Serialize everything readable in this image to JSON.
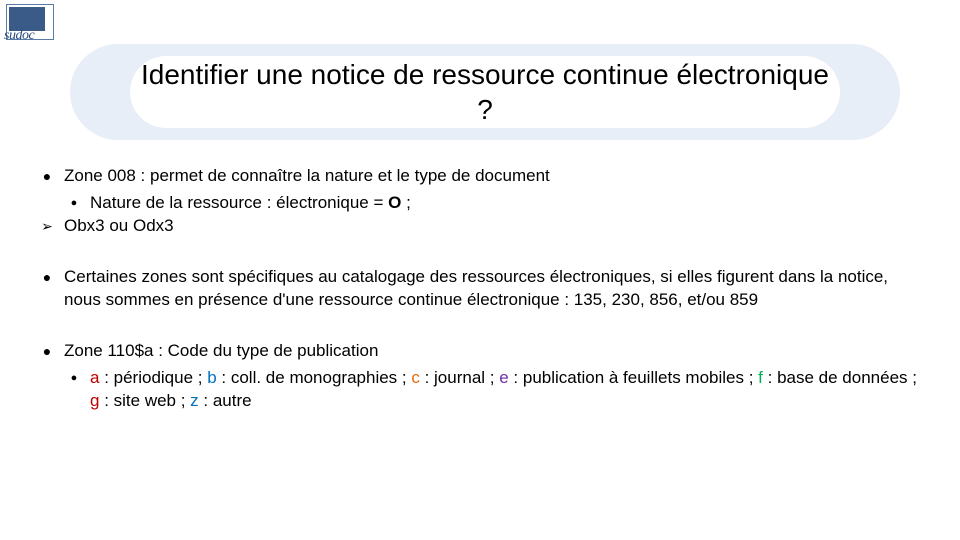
{
  "logo": {
    "text": "sudoc"
  },
  "title": "Identifier une notice de ressource continue électronique ?",
  "items": [
    {
      "bullet": "●",
      "text": "Zone 008 : permet de connaître la nature et le type de document",
      "sub": [
        {
          "bullet": "●",
          "type": "dot",
          "prefix": "Nature de la ressource : électronique = ",
          "bold": "O",
          "suffix": " ;"
        },
        {
          "bullet": "➢",
          "type": "arrow",
          "text": "Obx3 ou Odx3"
        }
      ]
    },
    {
      "bullet": "●",
      "text": "Certaines zones sont spécifiques au catalogage des ressources électroniques, si elles figurent dans la notice, nous sommes en présence d'une ressource continue électronique : 135, 230, 856, et/ou 859"
    },
    {
      "bullet": "●",
      "text": "Zone 110$a : Code du type de publication",
      "sub": [
        {
          "bullet": "●",
          "type": "codes",
          "codes": [
            {
              "k": "a",
              "label": " : périodique ; ",
              "cls": "c-a"
            },
            {
              "k": "b",
              "label": " : coll. de monographies ; ",
              "cls": "c-b"
            },
            {
              "k": "c",
              "label": " : journal ; ",
              "cls": "c-c"
            },
            {
              "k": "e",
              "label": " : publication à feuillets mobiles ; ",
              "cls": "c-e"
            },
            {
              "k": "f",
              "label": " : base de données ; ",
              "cls": "c-f"
            },
            {
              "k": "g",
              "label": " : site web ; ",
              "cls": "c-g"
            },
            {
              "k": "z",
              "label": " : autre",
              "cls": "c-z"
            }
          ]
        }
      ]
    }
  ]
}
